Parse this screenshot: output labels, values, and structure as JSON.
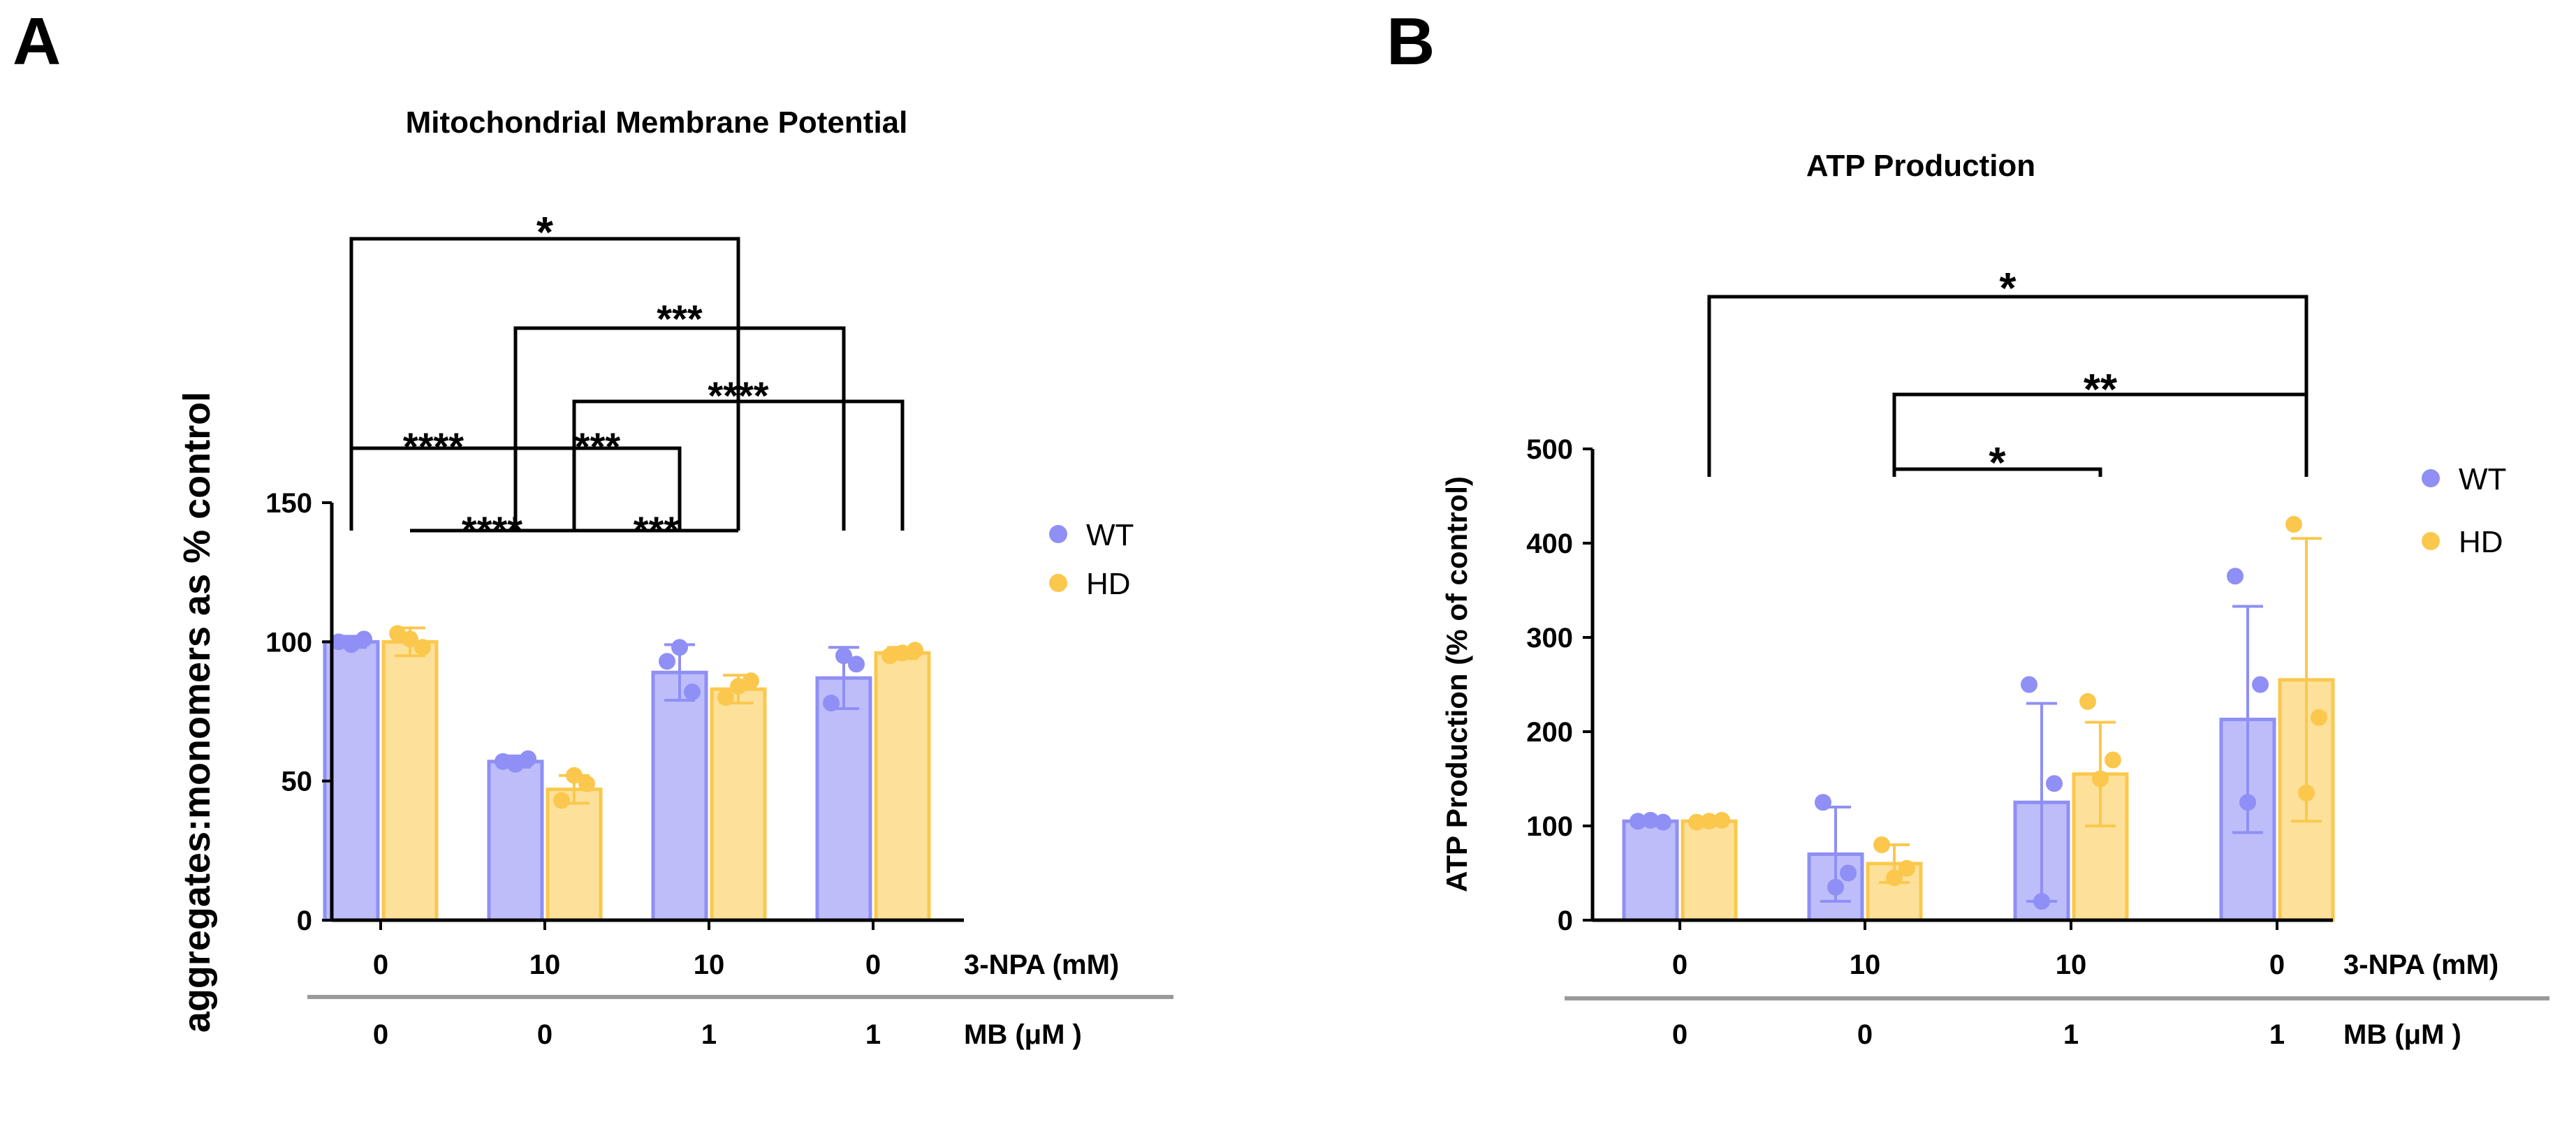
{
  "chart_data": [
    {
      "panel": "A",
      "type": "bar",
      "title": "Mitochondrial Membrane Potential",
      "ylabel": "aggregates:monomers as % control",
      "ylim": [
        0,
        150
      ],
      "yticks": [
        "0",
        "50",
        "100",
        "150"
      ],
      "condition_rows": [
        {
          "label": "3-NPA (mM)",
          "values": [
            "0",
            "10",
            "10",
            "0"
          ]
        },
        {
          "label": "MB (μM )",
          "values": [
            "0",
            "0",
            "1",
            "1"
          ]
        }
      ],
      "series": [
        {
          "name": "WT",
          "values": [
            100,
            57,
            89,
            87
          ],
          "errors": [
            2,
            2,
            10,
            11
          ],
          "points": [
            [
              100,
              101,
              99
            ],
            [
              57,
              58,
              56
            ],
            [
              93,
              82,
              98
            ],
            [
              78,
              92,
              95
            ]
          ]
        },
        {
          "name": "HD",
          "values": [
            100,
            47,
            83,
            96
          ],
          "errors": [
            5,
            5,
            5,
            2
          ],
          "points": [
            [
              103,
              98,
              101
            ],
            [
              43,
              49,
              52
            ],
            [
              80,
              86,
              84
            ],
            [
              95,
              97,
              96
            ]
          ]
        }
      ],
      "legend": [
        "WT",
        "HD"
      ],
      "significance": [
        {
          "label": "*",
          "from": [
            0,
            0
          ],
          "to": [
            2,
            1
          ]
        },
        {
          "label": "***",
          "from": [
            1,
            0
          ],
          "to": [
            3,
            0
          ]
        },
        {
          "label": "****",
          "from": [
            1,
            1
          ],
          "to": [
            3,
            1
          ]
        },
        {
          "label": "****",
          "from": [
            0,
            0
          ],
          "to": [
            1,
            0
          ]
        },
        {
          "label": "***",
          "from": [
            1,
            0
          ],
          "to": [
            2,
            0
          ]
        },
        {
          "label": "****",
          "from": [
            0,
            1
          ],
          "to": [
            1,
            1
          ]
        },
        {
          "label": "***",
          "from": [
            1,
            1
          ],
          "to": [
            2,
            1
          ]
        }
      ]
    },
    {
      "panel": "B",
      "type": "bar",
      "title": "ATP Production",
      "ylabel": "ATP Production (% of control)",
      "ylim": [
        0,
        500
      ],
      "yticks": [
        "0",
        "100",
        "200",
        "300",
        "400",
        "500"
      ],
      "condition_rows": [
        {
          "label": "3-NPA (mM)",
          "values": [
            "0",
            "10",
            "10",
            "0"
          ]
        },
        {
          "label": "MB (μM )",
          "values": [
            "0",
            "0",
            "1",
            "1"
          ]
        }
      ],
      "series": [
        {
          "name": "WT",
          "values": [
            105,
            70,
            125,
            213
          ],
          "errors": [
            3,
            50,
            105,
            120
          ],
          "points": [
            [
              105,
              104,
              106
            ],
            [
              125,
              50,
              35
            ],
            [
              250,
              145,
              20
            ],
            [
              365,
              250,
              125
            ]
          ]
        },
        {
          "name": "HD",
          "values": [
            105,
            60,
            155,
            255
          ],
          "errors": [
            3,
            20,
            55,
            150
          ],
          "points": [
            [
              104,
              106,
              105
            ],
            [
              80,
              55,
              45
            ],
            [
              232,
              170,
              150
            ],
            [
              420,
              215,
              135
            ]
          ]
        }
      ],
      "legend": [
        "WT",
        "HD"
      ],
      "significance": [
        {
          "label": "*",
          "from": [
            0,
            1
          ],
          "to": [
            3,
            1
          ]
        },
        {
          "label": "**",
          "from": [
            1,
            1
          ],
          "to": [
            3,
            1
          ]
        },
        {
          "label": "*",
          "from": [
            1,
            1
          ],
          "to": [
            2,
            1
          ]
        }
      ]
    }
  ],
  "panel_letters": [
    "A",
    "B"
  ],
  "colors": {
    "WT": "#8f8ff5",
    "HD": "#fbc84d",
    "WT_fill": "#bdbdfa",
    "HD_fill": "#fde19a",
    "ink": "#000000",
    "rule": "#9a9a9a"
  }
}
